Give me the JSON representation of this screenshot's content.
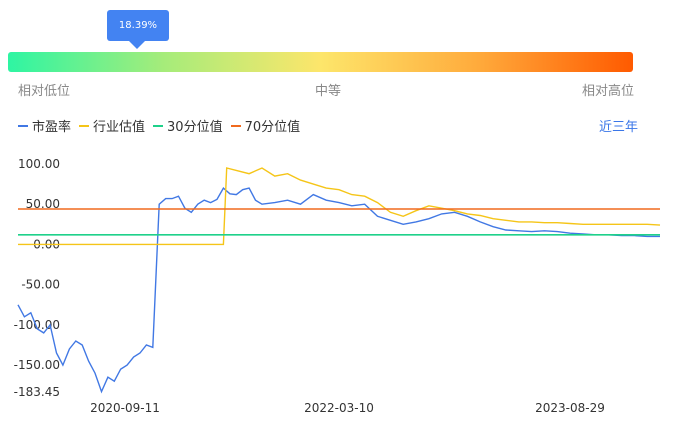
{
  "gauge": {
    "percentile_label": "18.39%",
    "percentile": 0.1839,
    "low_label": "相对低位",
    "mid_label": "中等",
    "high_label": "相对高位"
  },
  "legend": {
    "pe": "市盈率",
    "industry": "行业估值",
    "p30": "30分位值",
    "p70": "70分位值"
  },
  "range_label": "近三年",
  "colors": {
    "pe": "#4178e4",
    "industry": "#f5c518",
    "p30": "#1fd18a",
    "p70": "#f06a1e",
    "accent": "#3a76e8"
  },
  "chart_data": {
    "type": "line",
    "x_ticks": [
      "2020-09-11",
      "2022-03-10",
      "2023-08-29"
    ],
    "y_ticks": [
      100.0,
      50.0,
      0.0,
      -50.0,
      -100.0,
      -150.0,
      -183.45
    ],
    "y_tick_labels": [
      "100.00",
      "50.00",
      "0.00",
      "-50.00",
      "-100.00",
      "-150.00",
      "-183.45"
    ],
    "ylim": [
      -183.45,
      100
    ],
    "x_range": [
      0,
      100
    ],
    "series": [
      {
        "name": "市盈率",
        "x": [
          0,
          1,
          2,
          3,
          4,
          5,
          6,
          7,
          8,
          9,
          10,
          11,
          12,
          13,
          14,
          15,
          16,
          17,
          18,
          19,
          20,
          21,
          22,
          23,
          24,
          25,
          26,
          27,
          28,
          29,
          30,
          31,
          32,
          33,
          34,
          35,
          36,
          37,
          38,
          40,
          42,
          44,
          46,
          48,
          50,
          52,
          54,
          56,
          58,
          60,
          62,
          64,
          66,
          68,
          70,
          72,
          74,
          76,
          78,
          80,
          82,
          84,
          86,
          88,
          90,
          92,
          94,
          96,
          98,
          100
        ],
        "y": [
          -75,
          -90,
          -85,
          -105,
          -110,
          -100,
          -135,
          -150,
          -130,
          -120,
          -125,
          -145,
          -160,
          -183,
          -165,
          -170,
          -155,
          -150,
          -140,
          -135,
          -125,
          -128,
          50,
          57,
          57,
          60,
          45,
          40,
          50,
          55,
          52,
          56,
          70,
          63,
          62,
          68,
          70,
          55,
          50,
          52,
          55,
          50,
          62,
          55,
          52,
          48,
          50,
          35,
          30,
          25,
          28,
          32,
          38,
          40,
          35,
          28,
          22,
          18,
          17,
          16,
          17,
          16,
          14,
          13,
          12,
          12,
          11,
          11,
          10,
          10
        ]
      },
      {
        "name": "行业估值",
        "x": [
          0,
          32,
          32.5,
          34,
          36,
          38,
          40,
          42,
          44,
          46,
          48,
          50,
          52,
          54,
          56,
          58,
          60,
          62,
          64,
          66,
          68,
          70,
          72,
          74,
          76,
          78,
          80,
          82,
          84,
          86,
          88,
          90,
          92,
          94,
          96,
          98,
          100
        ],
        "y": [
          0,
          0,
          95,
          92,
          88,
          95,
          85,
          88,
          80,
          75,
          70,
          68,
          62,
          60,
          52,
          40,
          35,
          42,
          48,
          45,
          42,
          38,
          36,
          32,
          30,
          28,
          28,
          27,
          27,
          26,
          25,
          25,
          25,
          25,
          25,
          25,
          24
        ]
      },
      {
        "name": "30分位值",
        "x": [
          0,
          100
        ],
        "y": [
          12,
          12
        ]
      },
      {
        "name": "70分位值",
        "x": [
          0,
          100
        ],
        "y": [
          44,
          44
        ]
      }
    ]
  }
}
